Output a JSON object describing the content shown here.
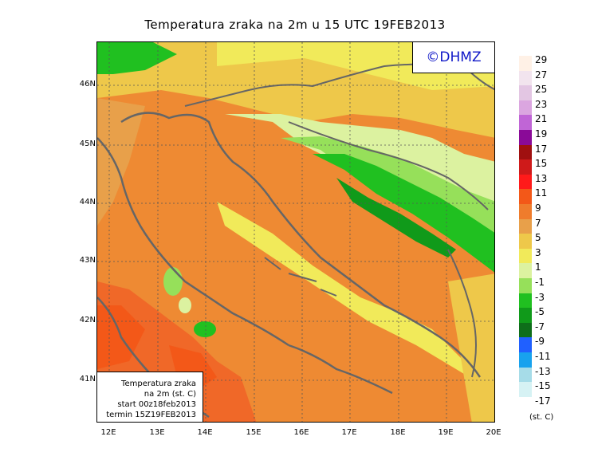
{
  "title": "Temperatura zraka na 2m u 15 UTC 19FEB2013",
  "badge": "©DHMZ",
  "info": {
    "line1": "Temperatura zraka",
    "line2": "na 2m (st. C)",
    "line3": "start 00z18feb2013",
    "line4": "termin 15Z19FEB2013"
  },
  "axes": {
    "lat_labels": [
      "46N",
      "45N",
      "44N",
      "43N",
      "42N",
      "41N"
    ],
    "lon_labels": [
      "12E",
      "13E",
      "14E",
      "15E",
      "16E",
      "17E",
      "18E",
      "19E",
      "20E"
    ]
  },
  "legend": {
    "labels": [
      "29",
      "27",
      "25",
      "23",
      "21",
      "19",
      "17",
      "15",
      "13",
      "11",
      "9",
      "7",
      "5",
      "3",
      "1",
      "-1",
      "-3",
      "-5",
      "-7",
      "-9",
      "-11",
      "-13",
      "-15",
      "-17"
    ],
    "colors": [
      "#fff1e6",
      "#f2e4ee",
      "#e3c6e3",
      "#dba6e0",
      "#c065d6",
      "#8a0a98",
      "#a01010",
      "#cf1a1a",
      "#ff1a1a",
      "#f35818",
      "#ef7c2c",
      "#e8a04a",
      "#eec84a",
      "#f1ea5a",
      "#dcf2a0",
      "#96e05a",
      "#20c020",
      "#109a1a",
      "#0e6e1a",
      "#2060ff",
      "#18a2ee",
      "#a6dce8",
      "#d6f2f4",
      "#ffffff"
    ],
    "unit": "(st. C)"
  }
}
